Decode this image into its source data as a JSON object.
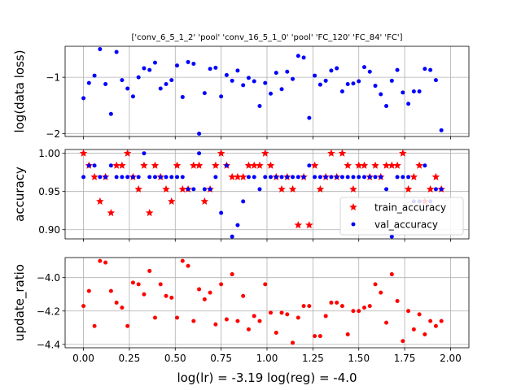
{
  "figure": {
    "title": "['conv_6_5_1_2' 'pool' 'conv_16_5_1_0' 'pool' 'FC_120' 'FC_84' 'FC']",
    "xlabel": "log(lr) = -3.19   log(reg) = -4.0"
  },
  "chart_data": [
    {
      "type": "scatter",
      "ylabel": "log(data loss)",
      "xlim": [
        -0.1,
        2.1
      ],
      "ylim": [
        -2.05,
        -0.45
      ],
      "grid": true,
      "xticks": [
        0.0,
        0.25,
        0.5,
        0.75,
        1.0,
        1.25,
        1.5,
        1.75,
        2.0
      ],
      "xticklabels": [],
      "yticks": [
        -2,
        -1
      ],
      "yticklabels": [
        "−2",
        "−1"
      ],
      "series": [
        {
          "color": "#0000ff",
          "marker": "circle",
          "x": [
            0.0,
            0.03,
            0.06,
            0.09,
            0.12,
            0.15,
            0.18,
            0.21,
            0.24,
            0.27,
            0.3,
            0.33,
            0.36,
            0.39,
            0.42,
            0.45,
            0.48,
            0.51,
            0.54,
            0.57,
            0.6,
            0.63,
            0.66,
            0.69,
            0.72,
            0.75,
            0.78,
            0.81,
            0.84,
            0.87,
            0.9,
            0.93,
            0.96,
            0.99,
            1.02,
            1.05,
            1.08,
            1.11,
            1.14,
            1.17,
            1.2,
            1.23,
            1.26,
            1.29,
            1.32,
            1.35,
            1.38,
            1.41,
            1.44,
            1.47,
            1.5,
            1.53,
            1.56,
            1.59,
            1.62,
            1.65,
            1.68,
            1.71,
            1.74,
            1.77,
            1.8,
            1.83,
            1.86,
            1.89,
            1.92,
            1.95
          ],
          "y": [
            -1.37,
            -1.1,
            -0.97,
            -0.5,
            -1.12,
            -1.65,
            -0.55,
            -1.05,
            -1.2,
            -1.34,
            -1.0,
            -0.84,
            -0.87,
            -0.74,
            -1.2,
            -1.12,
            -1.05,
            -0.79,
            -1.35,
            -0.73,
            -0.76,
            -2.0,
            -1.28,
            -0.85,
            -0.83,
            -1.34,
            -0.96,
            -1.06,
            -0.88,
            -1.14,
            -1.01,
            -1.07,
            -1.51,
            -1.1,
            -1.29,
            -0.92,
            -1.21,
            -0.9,
            -1.03,
            -0.62,
            -0.65,
            -1.72,
            -0.97,
            -1.13,
            -1.06,
            -0.88,
            -0.84,
            -1.25,
            -1.12,
            -1.11,
            -1.07,
            -0.82,
            -0.9,
            -1.15,
            -1.3,
            -1.51,
            -1.06,
            -0.87,
            -1.27,
            -1.47,
            -1.25,
            -1.25,
            -0.85,
            -0.87,
            -1.05,
            -1.94
          ]
        }
      ]
    },
    {
      "type": "scatter",
      "ylabel": "accuracy",
      "xlim": [
        -0.1,
        2.1
      ],
      "ylim": [
        0.888,
        1.005
      ],
      "grid": true,
      "xticks": [
        0.0,
        0.25,
        0.5,
        0.75,
        1.0,
        1.25,
        1.5,
        1.75,
        2.0
      ],
      "xticklabels": [],
      "yticks": [
        0.9,
        0.95,
        1.0
      ],
      "yticklabels": [
        "0.90",
        "0.95",
        "1.00"
      ],
      "legend": {
        "position": "lower-right",
        "entries": [
          {
            "label": "train_accuracy",
            "marker": "star",
            "color": "#ff0000"
          },
          {
            "label": "val_accuracy",
            "marker": "circle",
            "color": "#0000ff"
          }
        ]
      },
      "series": [
        {
          "name": "train_accuracy",
          "color": "#ff0000",
          "marker": "star",
          "x": [
            0.0,
            0.03,
            0.06,
            0.09,
            0.12,
            0.15,
            0.18,
            0.21,
            0.24,
            0.27,
            0.3,
            0.33,
            0.36,
            0.39,
            0.42,
            0.45,
            0.48,
            0.51,
            0.54,
            0.57,
            0.6,
            0.63,
            0.66,
            0.69,
            0.72,
            0.75,
            0.78,
            0.81,
            0.84,
            0.87,
            0.9,
            0.93,
            0.96,
            0.99,
            1.02,
            1.05,
            1.08,
            1.11,
            1.14,
            1.17,
            1.2,
            1.23,
            1.26,
            1.29,
            1.32,
            1.35,
            1.38,
            1.41,
            1.44,
            1.47,
            1.5,
            1.53,
            1.56,
            1.59,
            1.62,
            1.65,
            1.68,
            1.71,
            1.74,
            1.77,
            1.8,
            1.83,
            1.86,
            1.89,
            1.92,
            1.95
          ],
          "y": [
            1.0,
            0.984,
            0.969,
            0.937,
            0.969,
            0.922,
            0.984,
            0.984,
            1.0,
            0.969,
            0.953,
            0.984,
            0.922,
            0.984,
            0.969,
            0.953,
            0.937,
            0.984,
            0.953,
            0.953,
            0.984,
            0.984,
            0.937,
            0.953,
            0.984,
            1.0,
            0.984,
            0.969,
            0.969,
            0.969,
            0.984,
            0.984,
            0.984,
            1.0,
            0.984,
            0.969,
            0.953,
            0.969,
            0.953,
            0.906,
            0.969,
            0.906,
            0.984,
            0.953,
            0.969,
            1.0,
            0.969,
            1.0,
            0.984,
            0.953,
            0.984,
            0.984,
            0.969,
            0.984,
            0.969,
            0.984,
            0.984,
            0.984,
            1.0,
            0.953,
            0.969,
            0.984,
            0.937,
            0.953,
            0.969,
            0.953
          ]
        },
        {
          "name": "val_accuracy",
          "color": "#0000ff",
          "marker": "circle",
          "x": [
            0.0,
            0.03,
            0.06,
            0.09,
            0.12,
            0.15,
            0.18,
            0.21,
            0.24,
            0.27,
            0.3,
            0.33,
            0.36,
            0.39,
            0.42,
            0.45,
            0.48,
            0.51,
            0.54,
            0.57,
            0.6,
            0.63,
            0.66,
            0.69,
            0.72,
            0.75,
            0.78,
            0.81,
            0.84,
            0.87,
            0.9,
            0.93,
            0.96,
            0.99,
            1.02,
            1.05,
            1.08,
            1.11,
            1.14,
            1.17,
            1.2,
            1.23,
            1.26,
            1.29,
            1.32,
            1.35,
            1.38,
            1.41,
            1.44,
            1.47,
            1.5,
            1.53,
            1.56,
            1.59,
            1.62,
            1.65,
            1.68,
            1.71,
            1.74,
            1.77,
            1.8,
            1.83,
            1.86,
            1.89,
            1.92,
            1.95
          ],
          "y": [
            0.969,
            0.984,
            0.984,
            0.969,
            0.969,
            0.984,
            0.969,
            0.969,
            0.969,
            0.969,
            0.969,
            1.0,
            0.969,
            0.969,
            0.969,
            0.969,
            0.969,
            0.969,
            0.969,
            0.953,
            0.953,
            1.0,
            0.953,
            0.953,
            0.969,
            0.922,
            0.984,
            0.891,
            0.906,
            0.937,
            0.969,
            0.969,
            0.953,
            0.969,
            0.969,
            0.969,
            0.969,
            0.969,
            0.969,
            0.969,
            0.969,
            0.984,
            0.969,
            0.969,
            0.969,
            0.969,
            0.969,
            0.969,
            0.969,
            0.969,
            0.969,
            0.969,
            0.969,
            0.969,
            0.969,
            0.953,
            0.891,
            0.969,
            0.969,
            0.969,
            0.937,
            0.937,
            0.984,
            0.937,
            0.953,
            0.953
          ]
        }
      ]
    },
    {
      "type": "scatter",
      "ylabel": "update_ratio",
      "xlim": [
        -0.1,
        2.1
      ],
      "ylim": [
        -4.42,
        -3.88
      ],
      "grid": true,
      "xticks": [
        0.0,
        0.25,
        0.5,
        0.75,
        1.0,
        1.25,
        1.5,
        1.75,
        2.0
      ],
      "xticklabels": [
        "0.00",
        "0.25",
        "0.50",
        "0.75",
        "1.00",
        "1.25",
        "1.50",
        "1.75",
        "2.00"
      ],
      "yticks": [
        -4.4,
        -4.2,
        -4.0
      ],
      "yticklabels": [
        "−4.4",
        "−4.2",
        "−4.0"
      ],
      "series": [
        {
          "color": "#ff0000",
          "marker": "circle",
          "x": [
            0.0,
            0.03,
            0.06,
            0.09,
            0.12,
            0.15,
            0.18,
            0.21,
            0.24,
            0.27,
            0.3,
            0.33,
            0.36,
            0.39,
            0.42,
            0.45,
            0.48,
            0.51,
            0.54,
            0.57,
            0.6,
            0.63,
            0.66,
            0.69,
            0.72,
            0.75,
            0.78,
            0.81,
            0.84,
            0.87,
            0.9,
            0.93,
            0.96,
            0.99,
            1.02,
            1.05,
            1.08,
            1.11,
            1.14,
            1.17,
            1.2,
            1.23,
            1.26,
            1.29,
            1.32,
            1.35,
            1.38,
            1.41,
            1.44,
            1.47,
            1.5,
            1.53,
            1.56,
            1.59,
            1.62,
            1.65,
            1.68,
            1.71,
            1.74,
            1.77,
            1.8,
            1.83,
            1.86,
            1.89,
            1.92,
            1.95
          ],
          "y": [
            -4.17,
            -4.08,
            -4.29,
            -3.9,
            -3.91,
            -4.08,
            -4.15,
            -4.18,
            -4.29,
            -4.03,
            -4.04,
            -4.1,
            -3.96,
            -4.24,
            -4.04,
            -4.11,
            -4.12,
            -4.24,
            -3.9,
            -3.93,
            -4.26,
            -4.07,
            -4.13,
            -4.09,
            -4.28,
            -4.04,
            -4.25,
            -3.98,
            -4.26,
            -4.11,
            -4.31,
            -4.23,
            -4.26,
            -4.04,
            -4.21,
            -4.33,
            -4.21,
            -4.22,
            -4.39,
            -4.24,
            -4.17,
            -4.17,
            -4.35,
            -4.35,
            -4.23,
            -4.15,
            -4.15,
            -4.17,
            -4.34,
            -4.2,
            -4.2,
            -4.18,
            -4.17,
            -4.04,
            -4.09,
            -4.27,
            -3.98,
            -4.14,
            -4.38,
            -4.2,
            -4.31,
            -4.22,
            -4.34,
            -4.26,
            -4.29,
            -4.26
          ]
        }
      ]
    }
  ]
}
